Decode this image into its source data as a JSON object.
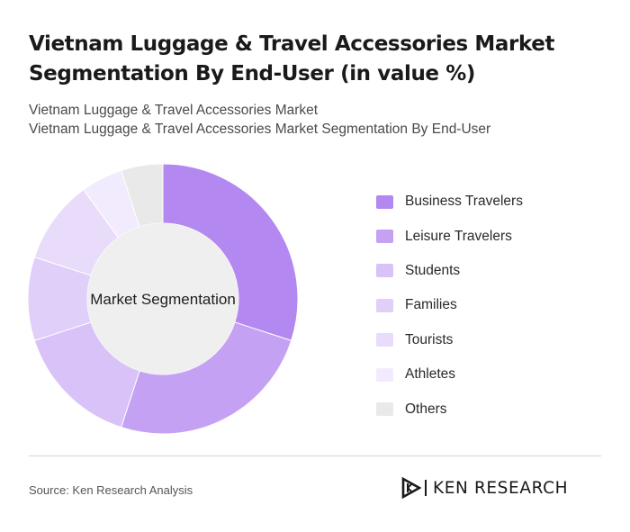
{
  "title": "Vietnam Luggage & Travel Accessories Market Segmentation By End-User (in value %)",
  "subtitle_lines": [
    "Vietnam Luggage & Travel Accessories Market",
    "Vietnam Luggage & Travel Accessories Market Segmentation By End-User"
  ],
  "chart_data": {
    "type": "pie",
    "variant": "donut",
    "center_label": "Market Segmentation",
    "categories": [
      "Business Travelers",
      "Leisure Travelers",
      "Students",
      "Families",
      "Tourists",
      "Athletes",
      "Others"
    ],
    "values": [
      30,
      25,
      15,
      10,
      10,
      5,
      5
    ],
    "colors": [
      "#b388f0",
      "#c5a1f3",
      "#d8c2f8",
      "#e0cff9",
      "#e9dcfb",
      "#f2ebfd",
      "#e9e9e9"
    ],
    "legend_position": "right"
  },
  "source": "Source: Ken Research Analysis",
  "logo": {
    "text": "KEN RESEARCH"
  }
}
